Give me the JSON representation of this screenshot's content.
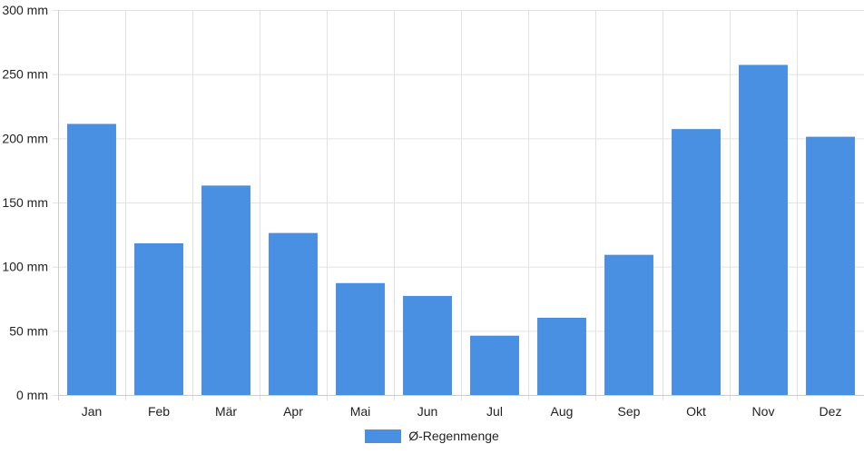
{
  "chart_data": {
    "type": "bar",
    "categories": [
      "Jan",
      "Feb",
      "Mär",
      "Apr",
      "Mai",
      "Jun",
      "Jul",
      "Aug",
      "Sep",
      "Okt",
      "Nov",
      "Dez"
    ],
    "series": [
      {
        "name": "Ø-Regenmenge",
        "values": [
          211,
          118,
          163,
          126,
          87,
          77,
          46,
          60,
          109,
          207,
          257,
          201
        ]
      }
    ],
    "title": "",
    "xlabel": "",
    "ylabel": "",
    "ylim": [
      0,
      300
    ],
    "yticks": [
      0,
      50,
      100,
      150,
      200,
      250,
      300
    ],
    "yunit": "mm",
    "grid": true,
    "legend_position": "bottom",
    "colors": {
      "bar": "#4a90e2",
      "grid": "#e2e2e2",
      "axis": "#cccccc"
    }
  }
}
